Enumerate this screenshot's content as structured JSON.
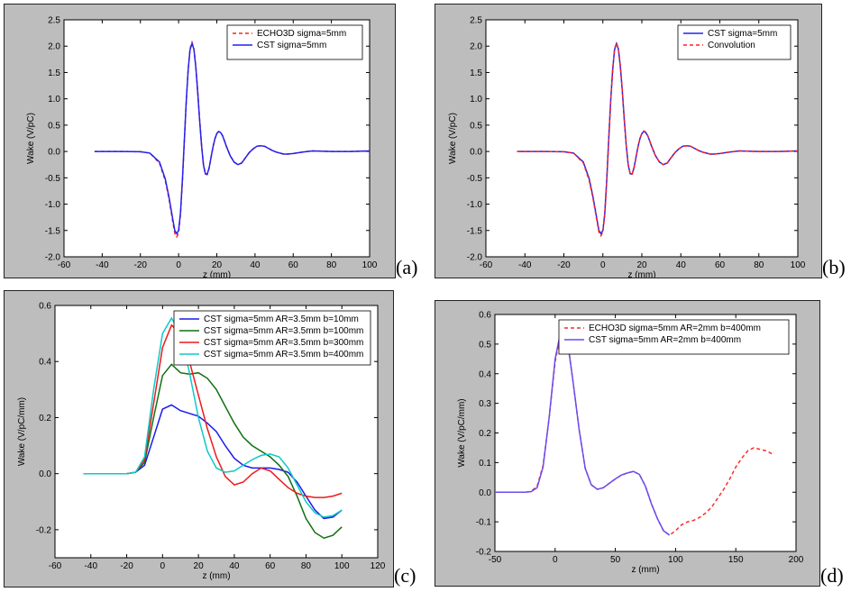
{
  "chart_data": [
    {
      "id": "a",
      "type": "line",
      "xlabel": "z (mm)",
      "ylabel": "Wake (V/pC)",
      "xlim": [
        -60,
        100
      ],
      "ylim": [
        -2.0,
        2.5
      ],
      "xticks": [
        -60,
        -40,
        -20,
        0,
        20,
        40,
        60,
        80,
        100
      ],
      "yticks": [
        -2.0,
        -1.5,
        -1.0,
        -0.5,
        0.0,
        0.5,
        1.0,
        1.5,
        2.0,
        2.5
      ],
      "tick_decimals": 1,
      "grid": false,
      "legend": "top-right",
      "series": [
        {
          "name": "ECHO3D sigma=5mm",
          "color": "#ff2020",
          "dash": true,
          "x": [
            -44,
            -30,
            -20,
            -15,
            -10,
            -7,
            -5,
            -3,
            -2,
            -1,
            0,
            1,
            2,
            3,
            4,
            5,
            6,
            7,
            8,
            9,
            10,
            11,
            12,
            13,
            14,
            15,
            16,
            17,
            18,
            19,
            20,
            21,
            22,
            23,
            24,
            25,
            27,
            29,
            31,
            33,
            35,
            37,
            39,
            41,
            43,
            45,
            47,
            49,
            51,
            53,
            55,
            57,
            60,
            65,
            70,
            80,
            90,
            100
          ],
          "y": [
            0,
            0,
            -0.005,
            -0.03,
            -0.22,
            -0.55,
            -0.9,
            -1.35,
            -1.55,
            -1.62,
            -1.55,
            -1.2,
            -0.55,
            0.2,
            0.95,
            1.55,
            1.95,
            2.07,
            1.95,
            1.62,
            1.15,
            0.62,
            0.12,
            -0.25,
            -0.43,
            -0.44,
            -0.32,
            -0.12,
            0.08,
            0.24,
            0.34,
            0.38,
            0.36,
            0.3,
            0.2,
            0.1,
            -0.08,
            -0.2,
            -0.25,
            -0.22,
            -0.12,
            -0.02,
            0.05,
            0.1,
            0.11,
            0.1,
            0.06,
            0.02,
            -0.01,
            -0.03,
            -0.05,
            -0.05,
            -0.04,
            -0.01,
            0.01,
            0,
            0,
            0.01
          ]
        },
        {
          "name": "CST sigma=5mm",
          "color": "#2222ee",
          "dash": false,
          "x": [
            -44,
            -30,
            -20,
            -15,
            -10,
            -7,
            -5,
            -3,
            -2,
            -1,
            0,
            1,
            2,
            3,
            4,
            5,
            6,
            7,
            8,
            9,
            10,
            11,
            12,
            13,
            14,
            15,
            16,
            17,
            18,
            19,
            20,
            21,
            22,
            23,
            24,
            25,
            27,
            29,
            31,
            33,
            35,
            37,
            39,
            41,
            43,
            45,
            47,
            49,
            51,
            53,
            55,
            57,
            60,
            65,
            70,
            80,
            90,
            100
          ],
          "y": [
            0,
            0,
            -0.005,
            -0.03,
            -0.2,
            -0.52,
            -0.87,
            -1.3,
            -1.5,
            -1.56,
            -1.5,
            -1.17,
            -0.52,
            0.22,
            0.95,
            1.54,
            1.93,
            2.05,
            1.94,
            1.6,
            1.13,
            0.6,
            0.11,
            -0.26,
            -0.42,
            -0.43,
            -0.31,
            -0.11,
            0.09,
            0.24,
            0.34,
            0.38,
            0.36,
            0.3,
            0.2,
            0.1,
            -0.08,
            -0.2,
            -0.25,
            -0.22,
            -0.12,
            -0.02,
            0.05,
            0.1,
            0.11,
            0.1,
            0.06,
            0.02,
            -0.01,
            -0.03,
            -0.05,
            -0.05,
            -0.04,
            -0.01,
            0.01,
            0,
            0,
            0.01
          ]
        }
      ]
    },
    {
      "id": "b",
      "type": "line",
      "xlabel": "z (mm)",
      "ylabel": "Wake (V/pC)",
      "xlim": [
        -60,
        100
      ],
      "ylim": [
        -2.0,
        2.5
      ],
      "xticks": [
        -60,
        -40,
        -20,
        0,
        20,
        40,
        60,
        80,
        100
      ],
      "yticks": [
        -2.0,
        -1.5,
        -1.0,
        -0.5,
        0.0,
        0.5,
        1.0,
        1.5,
        2.0,
        2.5
      ],
      "tick_decimals": 1,
      "grid": false,
      "legend": "top-right",
      "series": [
        {
          "name": "CST sigma=5mm",
          "color": "#2222ee",
          "dash": false,
          "x": [
            -44,
            -30,
            -20,
            -15,
            -10,
            -7,
            -5,
            -3,
            -2,
            -1,
            0,
            1,
            2,
            3,
            4,
            5,
            6,
            7,
            8,
            9,
            10,
            11,
            12,
            13,
            14,
            15,
            16,
            17,
            18,
            19,
            20,
            21,
            22,
            23,
            24,
            25,
            27,
            29,
            31,
            33,
            35,
            37,
            39,
            41,
            43,
            45,
            47,
            49,
            51,
            53,
            55,
            57,
            60,
            65,
            70,
            80,
            90,
            100
          ],
          "y": [
            0,
            0,
            -0.005,
            -0.03,
            -0.2,
            -0.52,
            -0.87,
            -1.3,
            -1.5,
            -1.56,
            -1.5,
            -1.17,
            -0.52,
            0.22,
            0.95,
            1.54,
            1.93,
            2.05,
            1.94,
            1.6,
            1.13,
            0.6,
            0.11,
            -0.26,
            -0.42,
            -0.43,
            -0.31,
            -0.11,
            0.09,
            0.24,
            0.34,
            0.38,
            0.36,
            0.3,
            0.2,
            0.1,
            -0.08,
            -0.2,
            -0.25,
            -0.22,
            -0.12,
            -0.02,
            0.05,
            0.1,
            0.11,
            0.1,
            0.06,
            0.02,
            -0.01,
            -0.03,
            -0.05,
            -0.05,
            -0.04,
            -0.01,
            0.01,
            0,
            0,
            0.01
          ]
        },
        {
          "name": "Convolution",
          "color": "#ff2020",
          "dash": true,
          "x": [
            -44,
            -30,
            -20,
            -15,
            -10,
            -7,
            -5,
            -3,
            -2,
            -1,
            0,
            1,
            2,
            3,
            4,
            5,
            6,
            7,
            8,
            9,
            10,
            11,
            12,
            13,
            14,
            15,
            16,
            17,
            18,
            19,
            20,
            21,
            22,
            23,
            24,
            25,
            27,
            29,
            31,
            33,
            35,
            37,
            39,
            41,
            43,
            45,
            47,
            49,
            51,
            53,
            55,
            57,
            60,
            65,
            70,
            80,
            90,
            100
          ],
          "y": [
            0,
            0,
            -0.005,
            -0.03,
            -0.22,
            -0.55,
            -0.9,
            -1.33,
            -1.53,
            -1.6,
            -1.53,
            -1.2,
            -0.55,
            0.2,
            0.95,
            1.55,
            1.95,
            2.06,
            1.95,
            1.62,
            1.15,
            0.62,
            0.12,
            -0.25,
            -0.42,
            -0.43,
            -0.32,
            -0.12,
            0.08,
            0.24,
            0.34,
            0.39,
            0.37,
            0.3,
            0.2,
            0.1,
            -0.08,
            -0.2,
            -0.25,
            -0.22,
            -0.12,
            -0.02,
            0.05,
            0.1,
            0.11,
            0.1,
            0.06,
            0.02,
            -0.01,
            -0.03,
            -0.05,
            -0.05,
            -0.04,
            -0.01,
            0.01,
            0,
            0,
            0.01
          ]
        }
      ]
    },
    {
      "id": "c",
      "type": "line",
      "xlabel": "z (mm)",
      "ylabel": "Wake (V/pC/mm)",
      "xlim": [
        -60,
        120
      ],
      "ylim": [
        -0.3,
        0.6
      ],
      "xticks": [
        -60,
        -40,
        -20,
        0,
        20,
        40,
        60,
        80,
        100,
        120
      ],
      "yticks": [
        -0.2,
        0.0,
        0.2,
        0.4,
        0.6
      ],
      "tick_decimals": 1,
      "grid": false,
      "legend": "top-right",
      "series": [
        {
          "name": "CST sigma=5mm  AR=3.5mm  b=10mm",
          "color": "#1a1aee",
          "dash": false,
          "x": [
            -44,
            -20,
            -15,
            -10,
            -5,
            0,
            5,
            10,
            15,
            20,
            25,
            30,
            35,
            40,
            45,
            50,
            55,
            60,
            65,
            70,
            75,
            80,
            85,
            90,
            95,
            100
          ],
          "y": [
            0,
            0,
            0.005,
            0.03,
            0.13,
            0.23,
            0.245,
            0.225,
            0.215,
            0.205,
            0.18,
            0.15,
            0.1,
            0.055,
            0.03,
            0.02,
            0.02,
            0.02,
            0.015,
            0.005,
            -0.03,
            -0.08,
            -0.13,
            -0.16,
            -0.155,
            -0.13
          ]
        },
        {
          "name": "CST sigma=5mm  AR=3.5mm  b=100mm",
          "color": "#107010",
          "dash": false,
          "x": [
            -44,
            -20,
            -15,
            -10,
            -5,
            0,
            5,
            10,
            15,
            20,
            25,
            30,
            35,
            40,
            45,
            50,
            55,
            60,
            65,
            70,
            75,
            80,
            85,
            90,
            95,
            100
          ],
          "y": [
            0,
            0,
            0.005,
            0.04,
            0.2,
            0.35,
            0.39,
            0.36,
            0.355,
            0.36,
            0.34,
            0.3,
            0.24,
            0.18,
            0.13,
            0.1,
            0.08,
            0.06,
            0.03,
            -0.01,
            -0.08,
            -0.16,
            -0.21,
            -0.23,
            -0.22,
            -0.19
          ]
        },
        {
          "name": "CST sigma=5mm  AR=3.5mm  b=300mm",
          "color": "#ee1a1a",
          "dash": false,
          "x": [
            -44,
            -20,
            -15,
            -10,
            -5,
            0,
            5,
            10,
            15,
            20,
            25,
            30,
            35,
            40,
            45,
            50,
            55,
            60,
            65,
            70,
            75,
            80,
            85,
            90,
            95,
            100
          ],
          "y": [
            0,
            0,
            0.005,
            0.05,
            0.25,
            0.45,
            0.53,
            0.5,
            0.4,
            0.28,
            0.16,
            0.06,
            -0.01,
            -0.04,
            -0.03,
            0,
            0.02,
            0.01,
            -0.02,
            -0.05,
            -0.07,
            -0.08,
            -0.085,
            -0.085,
            -0.08,
            -0.07
          ]
        },
        {
          "name": "CST sigma=5mm  AR=3.5mm  b=400mm",
          "color": "#10c8c8",
          "dash": false,
          "x": [
            -44,
            -20,
            -15,
            -10,
            -5,
            0,
            5,
            10,
            15,
            20,
            25,
            30,
            35,
            40,
            45,
            50,
            55,
            60,
            65,
            70,
            75,
            80,
            85,
            90,
            95,
            100
          ],
          "y": [
            0,
            0,
            0.005,
            0.06,
            0.3,
            0.5,
            0.555,
            0.5,
            0.36,
            0.2,
            0.08,
            0.02,
            0.005,
            0.01,
            0.03,
            0.05,
            0.065,
            0.07,
            0.06,
            0.02,
            -0.04,
            -0.1,
            -0.14,
            -0.155,
            -0.15,
            -0.13
          ]
        }
      ]
    },
    {
      "id": "d",
      "type": "line",
      "xlabel": "z (mm)",
      "ylabel": "Wake (V/pC/mm)",
      "xlim": [
        -50,
        200
      ],
      "ylim": [
        -0.2,
        0.6
      ],
      "xticks": [
        -50,
        0,
        50,
        100,
        150,
        200
      ],
      "yticks": [
        -0.2,
        -0.1,
        0.0,
        0.1,
        0.2,
        0.3,
        0.4,
        0.5,
        0.6
      ],
      "tick_decimals": 1,
      "grid": false,
      "legend": "top-right",
      "series": [
        {
          "name": "ECHO3D sigma=5mm AR=2mm b=400mm",
          "color": "#ff2a2a",
          "dash": true,
          "x": [
            -50,
            -25,
            -20,
            -15,
            -10,
            -5,
            0,
            5,
            10,
            15,
            20,
            25,
            30,
            35,
            40,
            45,
            50,
            55,
            60,
            65,
            70,
            75,
            80,
            85,
            90,
            95,
            100,
            105,
            110,
            115,
            120,
            125,
            130,
            135,
            140,
            145,
            150,
            155,
            160,
            165,
            170,
            175,
            180
          ],
          "y": [
            0,
            0,
            0.003,
            0.02,
            0.09,
            0.25,
            0.44,
            0.545,
            0.515,
            0.37,
            0.21,
            0.08,
            0.025,
            0.01,
            0.015,
            0.03,
            0.045,
            0.058,
            0.065,
            0.07,
            0.06,
            0.02,
            -0.04,
            -0.09,
            -0.13,
            -0.145,
            -0.13,
            -0.11,
            -0.1,
            -0.095,
            -0.085,
            -0.07,
            -0.05,
            -0.02,
            0.01,
            0.045,
            0.085,
            0.115,
            0.14,
            0.15,
            0.145,
            0.14,
            0.13
          ]
        },
        {
          "name": "CST sigma=5mm AR=2mm b=400mm",
          "color": "#6a4cf0",
          "dash": false,
          "x": [
            -50,
            -25,
            -20,
            -15,
            -10,
            -5,
            0,
            5,
            10,
            15,
            20,
            25,
            30,
            35,
            40,
            45,
            50,
            55,
            60,
            65,
            70,
            75,
            80,
            85,
            90,
            95
          ],
          "y": [
            0,
            0,
            0.002,
            0.015,
            0.085,
            0.25,
            0.45,
            0.55,
            0.52,
            0.37,
            0.21,
            0.08,
            0.025,
            0.01,
            0.015,
            0.03,
            0.045,
            0.058,
            0.065,
            0.07,
            0.06,
            0.02,
            -0.04,
            -0.09,
            -0.13,
            -0.145
          ]
        }
      ]
    }
  ],
  "panel_labels": [
    "(a)",
    "(b)",
    "(c)",
    "(d)"
  ]
}
